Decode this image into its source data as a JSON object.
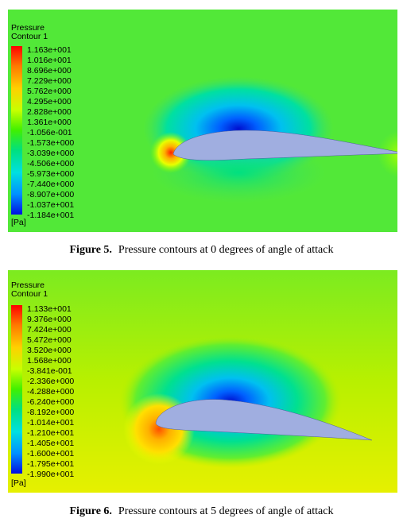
{
  "figures": [
    {
      "legend_title": "Pressure",
      "legend_subtitle": "Contour 1",
      "unit": "[Pa]",
      "ticks": [
        "1.163e+001",
        "1.016e+001",
        "8.696e+000",
        "7.229e+000",
        "5.762e+000",
        "4.295e+000",
        "2.828e+000",
        "1.361e+000",
        "-1.056e-001",
        "-1.573e+000",
        "-3.039e+000",
        "-4.506e+000",
        "-5.973e+000",
        "-7.440e+000",
        "-8.907e+000",
        "-1.037e+001",
        "-1.184e+001"
      ],
      "caption_label": "Figure 5.",
      "caption_text": "Pressure contours at 0 degrees of angle of attack"
    },
    {
      "legend_title": "Pressure",
      "legend_subtitle": "Contour 1",
      "unit": "[Pa]",
      "ticks": [
        "1.133e+001",
        "9.376e+000",
        "7.424e+000",
        "5.472e+000",
        "3.520e+000",
        "1.568e+000",
        "-3.841e-001",
        "-2.336e+000",
        "-4.288e+000",
        "-6.240e+000",
        "-8.192e+000",
        "-1.014e+001",
        "-1.210e+001",
        "-1.405e+001",
        "-1.600e+001",
        "-1.795e+001",
        "-1.990e+001"
      ],
      "caption_label": "Figure 6.",
      "caption_text": "Pressure contours at 5 degrees of angle of attack"
    }
  ],
  "colors": {
    "colormap": [
      "#ff0000",
      "#ff4a00",
      "#ff9300",
      "#ffd000",
      "#f2ff00",
      "#b8ff00",
      "#7cff00",
      "#40f000",
      "#00e040",
      "#00e6a0",
      "#00e0e0",
      "#00b4f0",
      "#0080ff",
      "#0040ff",
      "#0010e0"
    ],
    "airfoil": "#a0aee0"
  }
}
